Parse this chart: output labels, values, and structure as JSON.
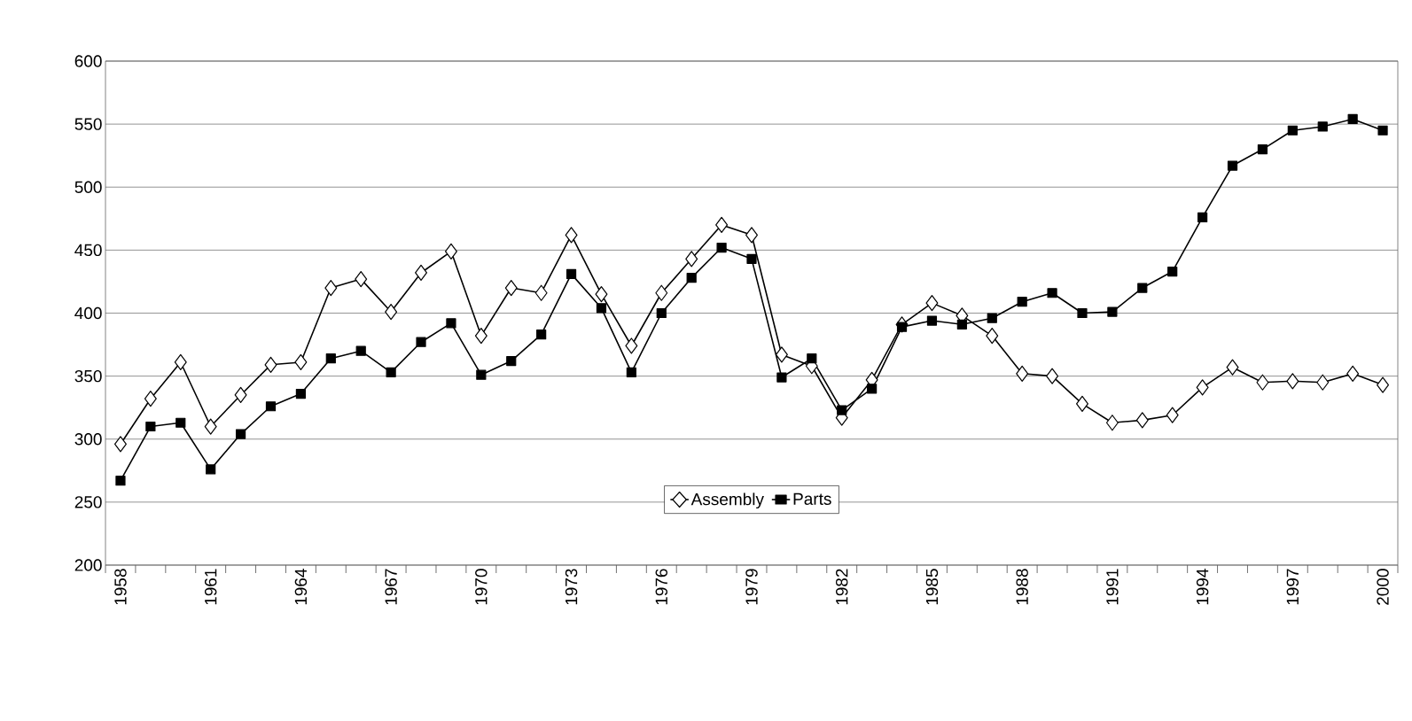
{
  "chart_data": {
    "type": "line",
    "categories": [
      "1958",
      null,
      null,
      "1961",
      null,
      null,
      "1964",
      null,
      null,
      "1967",
      null,
      null,
      "1970",
      null,
      null,
      "1973",
      null,
      null,
      "1976",
      null,
      null,
      "1979",
      null,
      null,
      "1982",
      null,
      null,
      "1985",
      null,
      null,
      "1988",
      null,
      null,
      "1991",
      null,
      null,
      "1994",
      null,
      null,
      "1997",
      null,
      null,
      "2000"
    ],
    "series": [
      {
        "name": "Assembly",
        "color": "#000000",
        "marker": "diamond",
        "values": [
          296,
          332,
          361,
          310,
          335,
          359,
          361,
          420,
          427,
          401,
          432,
          449,
          382,
          420,
          416,
          462,
          415,
          374,
          416,
          443,
          470,
          462,
          367,
          358,
          317,
          347,
          391,
          408,
          398,
          382,
          352,
          350,
          328,
          313,
          315,
          319,
          341,
          357,
          345,
          346,
          345,
          352,
          343
        ]
      },
      {
        "name": "Parts",
        "color": "#000000",
        "marker": "square",
        "values": [
          267,
          310,
          313,
          276,
          304,
          326,
          336,
          364,
          370,
          353,
          377,
          392,
          351,
          362,
          383,
          431,
          404,
          353,
          400,
          428,
          452,
          443,
          349,
          364,
          323,
          340,
          389,
          394,
          391,
          396,
          409,
          416,
          400,
          401,
          420,
          433,
          476,
          517,
          530,
          545,
          548,
          554,
          545
        ]
      }
    ],
    "ylim": [
      200,
      600
    ],
    "yticks": [
      200,
      250,
      300,
      350,
      400,
      450,
      500,
      550,
      600
    ],
    "grid": "y",
    "legend": "bottom",
    "line_style": "solid"
  }
}
